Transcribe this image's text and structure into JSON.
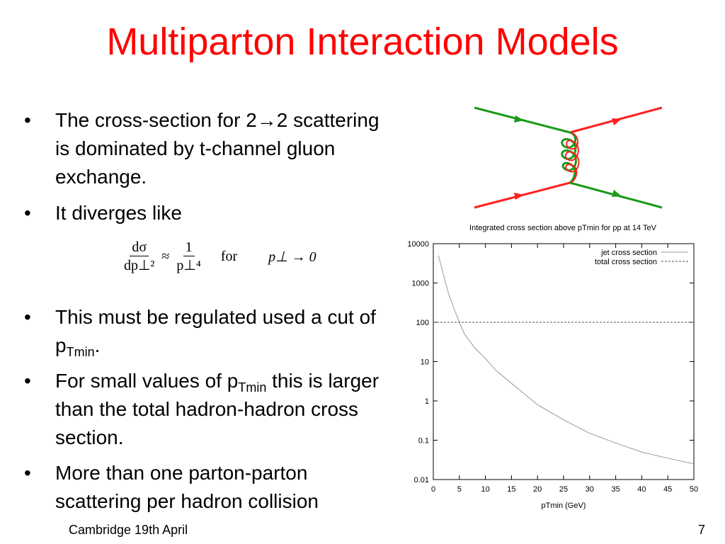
{
  "slide": {
    "title": "Multiparton Interaction Models",
    "bullets": [
      {
        "parts": [
          "The cross-section for 2→2 scattering is dominated by t-channel gluon exchange."
        ]
      },
      {
        "parts": [
          "It diverges like"
        ]
      },
      {
        "parts": [
          "This must be regulated used a cut of p",
          "Tmin",
          "."
        ]
      },
      {
        "parts": [
          "For small values of p",
          "Tmin",
          " this is larger than the total hadron-hadron cross section."
        ]
      },
      {
        "parts": [
          "More than one parton-parton scattering per hadron collision"
        ]
      }
    ],
    "formula": {
      "lhs_num": "dσ",
      "lhs_den": "dp⊥²",
      "relation": "≈",
      "rhs_num": "1",
      "rhs_den": "p⊥⁴",
      "word": "for",
      "condition": "p⊥ → 0"
    },
    "footer": {
      "left": "Cambridge 19th April",
      "page": "7"
    }
  },
  "chart_data": {
    "type": "line",
    "title": "Integrated cross section above pTmin for pp at 14 TeV",
    "x_label": "pTmin (GeV)",
    "xlim": [
      0,
      50
    ],
    "xticks": [
      0,
      5,
      10,
      15,
      20,
      25,
      30,
      35,
      40,
      45,
      50
    ],
    "ylim": [
      0.01,
      10000
    ],
    "yticks": [
      0.01,
      0.1,
      1,
      10,
      100,
      1000,
      10000
    ],
    "log_y": true,
    "legend": "top-right",
    "series": [
      {
        "name": "jet cross section",
        "color": "#999999",
        "dash": "solid",
        "x": [
          1,
          2,
          3,
          4,
          5,
          6,
          8,
          10,
          12,
          15,
          20,
          25,
          30,
          35,
          40,
          45,
          50
        ],
        "values": [
          5000,
          1500,
          500,
          220,
          100,
          50,
          22,
          12,
          6,
          2.8,
          0.8,
          0.33,
          0.15,
          0.085,
          0.05,
          0.035,
          0.025
        ]
      },
      {
        "name": "total cross section",
        "color": "#555555",
        "dash": "dashed",
        "x": [
          0,
          50
        ],
        "values": [
          100,
          100
        ]
      }
    ]
  }
}
